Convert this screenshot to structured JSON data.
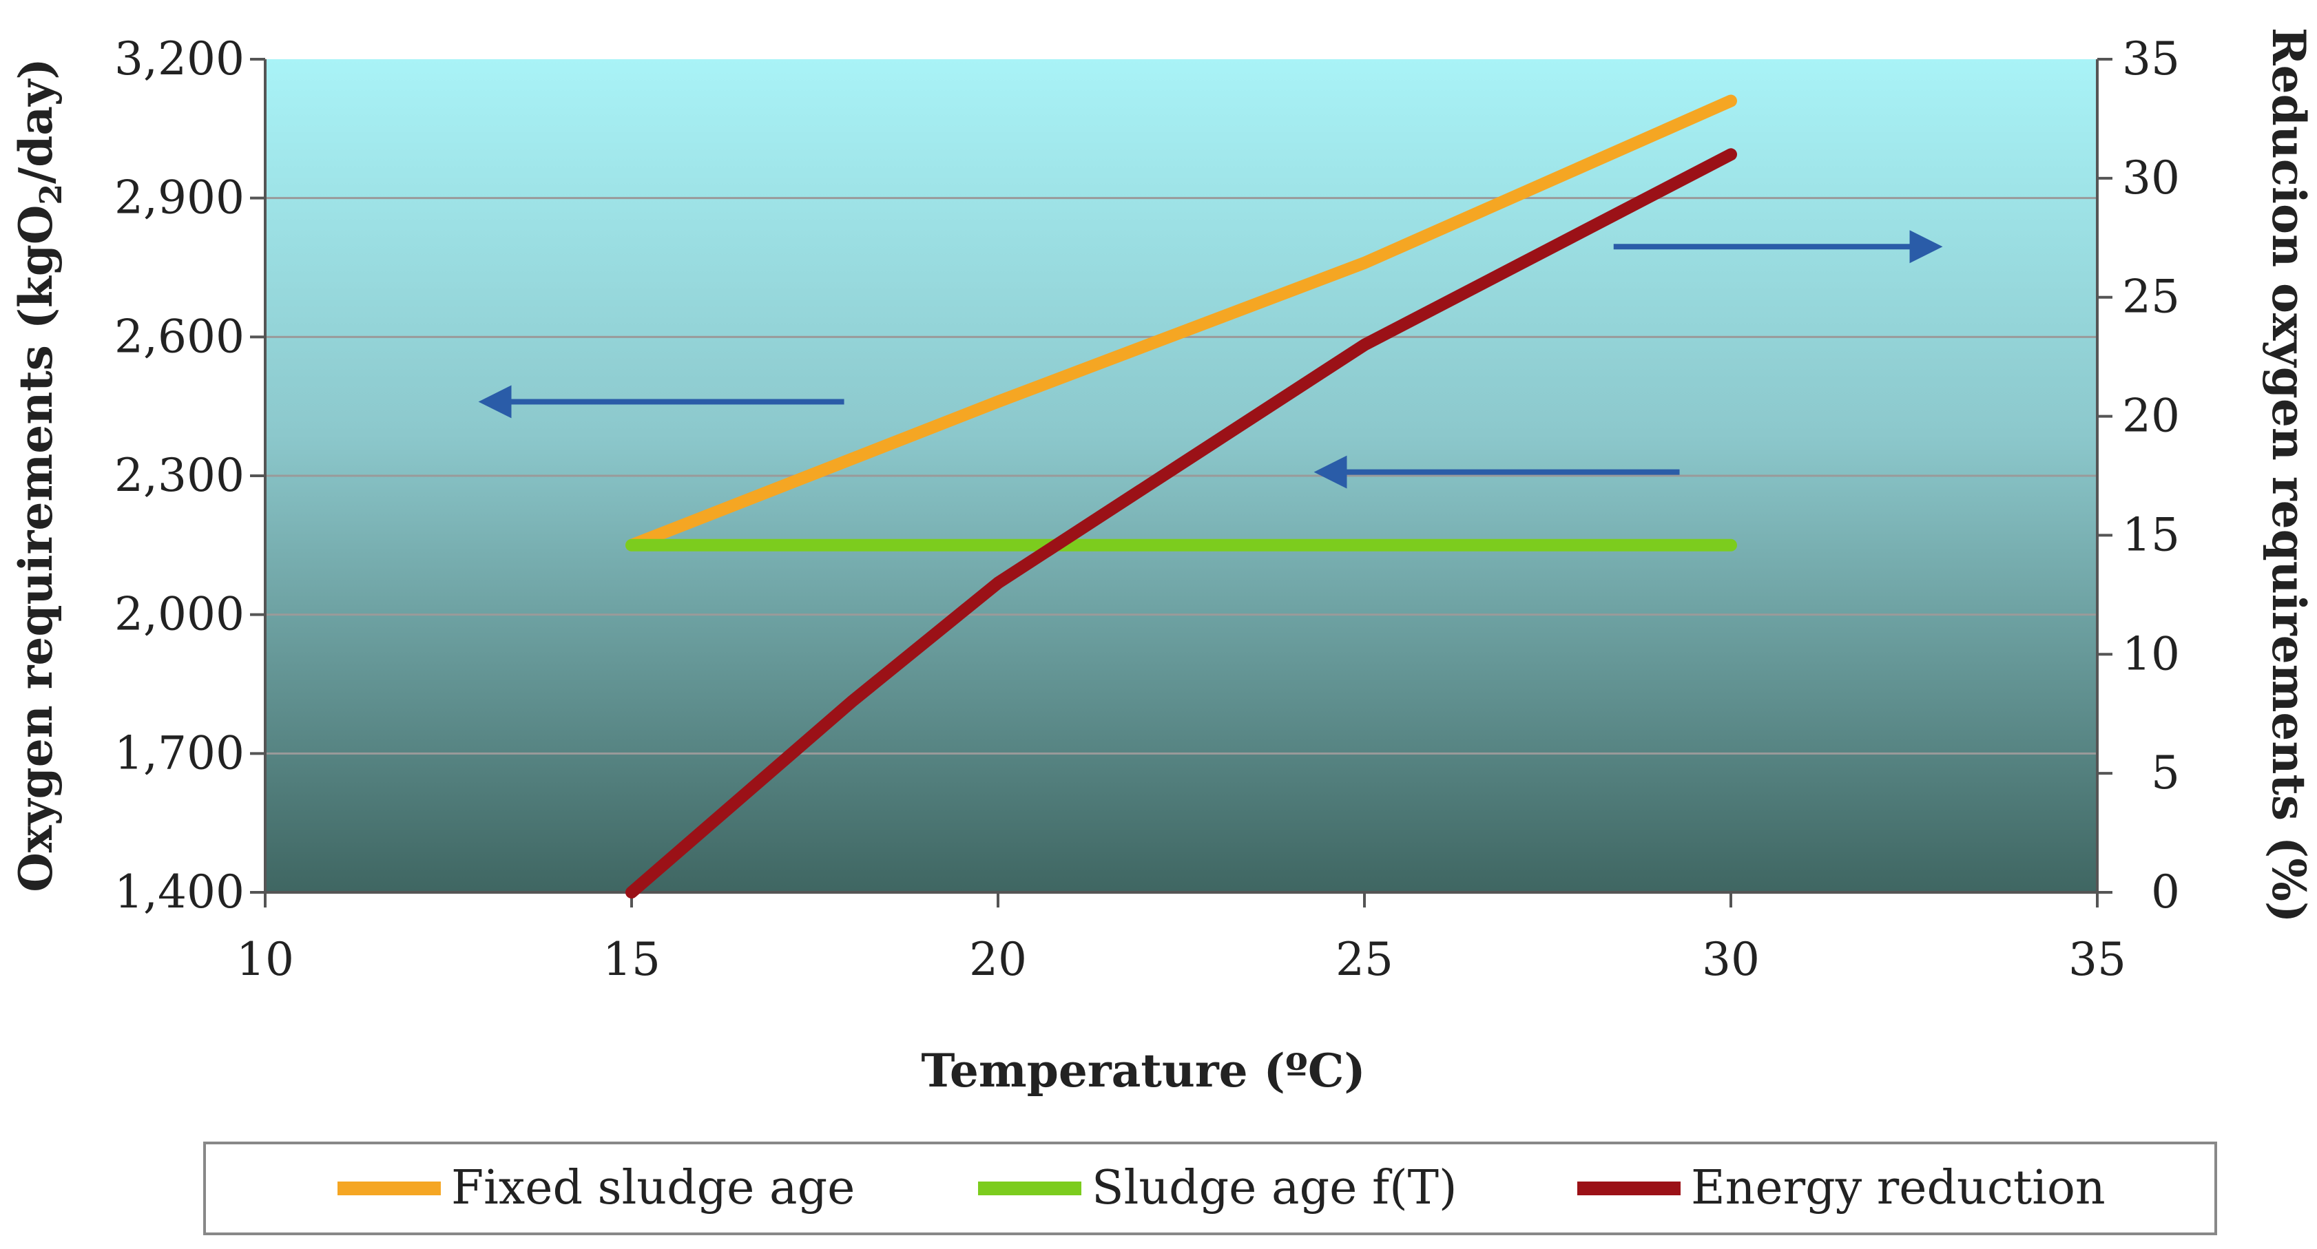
{
  "chart_data": {
    "type": "line",
    "x_axis": {
      "label": "Temperature (ºC)",
      "range": [
        10,
        35
      ],
      "ticks": [
        10,
        15,
        20,
        25,
        30,
        35
      ],
      "tick_labels": [
        "10",
        "15",
        "20",
        "25",
        "30",
        "35"
      ]
    },
    "y_axis_left": {
      "label": "Oxygen requirements (kgO2/day)",
      "label_main": "Oxygen requirements (kgO",
      "label_sub": "2",
      "label_end": "/day)",
      "range": [
        1400,
        3200
      ],
      "ticks": [
        1400,
        1700,
        2000,
        2300,
        2600,
        2900,
        3200
      ],
      "tick_labels": [
        "1,400",
        "1,700",
        "2,000",
        "2,300",
        "2,600",
        "2,900",
        "3,200"
      ]
    },
    "y_axis_right": {
      "label": "Reducion oxygen requirements (%)",
      "range": [
        0,
        35
      ],
      "ticks": [
        0,
        5,
        10,
        15,
        20,
        25,
        30,
        35
      ],
      "tick_labels": [
        "0",
        "5",
        "10",
        "15",
        "20",
        "25",
        "30",
        "35"
      ]
    },
    "grid": true,
    "series": [
      {
        "name": "Fixed sludge age",
        "axis": "left",
        "color": "#f5a623",
        "points": [
          [
            15,
            2150
          ],
          [
            20,
            2460
          ],
          [
            25,
            2760
          ],
          [
            30,
            3110
          ]
        ]
      },
      {
        "name": "Sludge age f(T)",
        "axis": "left",
        "color": "#7ccc1e",
        "points": [
          [
            15,
            2150
          ],
          [
            30,
            2150
          ]
        ]
      },
      {
        "name": "Energy reduction",
        "axis": "right",
        "color": "#9b1117",
        "points": [
          [
            15,
            0
          ],
          [
            18,
            8
          ],
          [
            20,
            13
          ],
          [
            22.5,
            18
          ],
          [
            25,
            23
          ],
          [
            27.5,
            27
          ],
          [
            30,
            31
          ]
        ]
      }
    ],
    "annotations": [
      {
        "type": "arrow",
        "direction": "left",
        "refers_to": "Fixed sludge age"
      },
      {
        "type": "arrow",
        "direction": "left",
        "refers_to": "Sludge age f(T)"
      },
      {
        "type": "arrow",
        "direction": "right",
        "refers_to": "Energy reduction"
      }
    ],
    "legend_position": "bottom",
    "colors": {
      "plot_top": "#a9f3f7",
      "plot_bottom": "#3f6662",
      "arrow": "#2a5ca8"
    }
  }
}
